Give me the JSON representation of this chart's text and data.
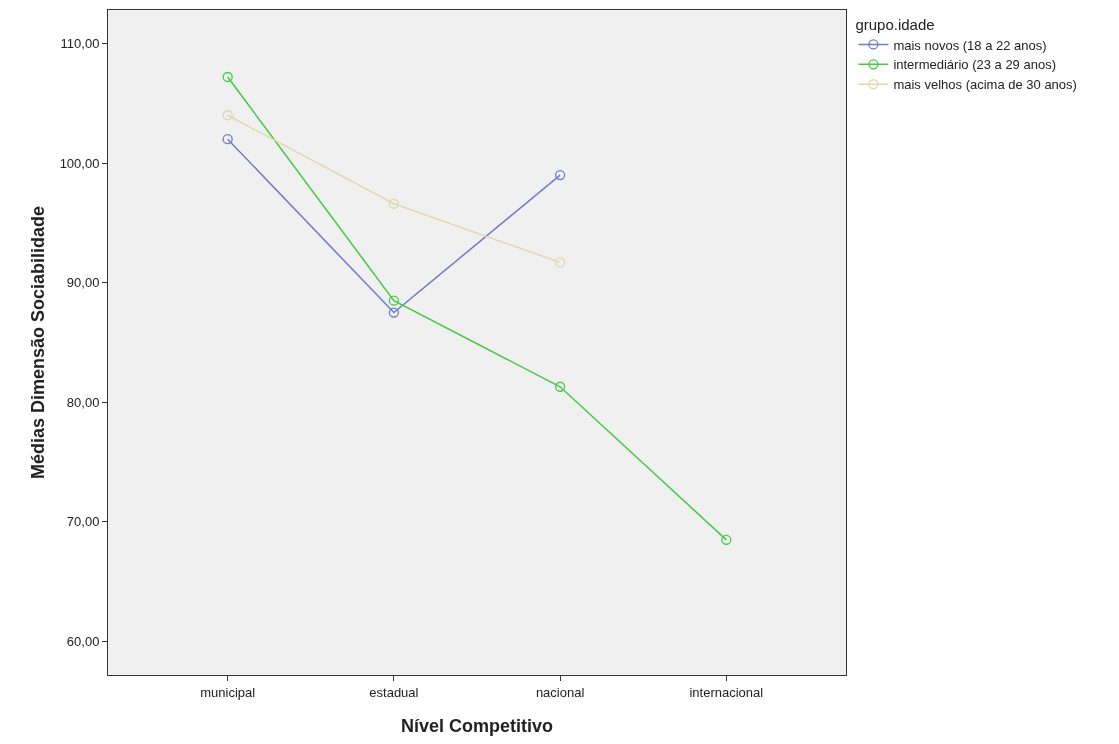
{
  "chart_data": {
    "type": "line",
    "xlabel": "Nível Competitivo",
    "ylabel": "Médias Dimensão Sociabilidade",
    "legend_title": "grupo.idade",
    "categories": [
      "municipal",
      "estadual",
      "nacional",
      "internacional"
    ],
    "series": [
      {
        "name": "mais novos (18 a 22 anos)",
        "color": "#6d7bc9",
        "values": [
          102.0,
          87.5,
          99.0,
          null
        ]
      },
      {
        "name": "intermediário (23 a 29 anos)",
        "color": "#45c845",
        "values": [
          107.2,
          88.5,
          81.3,
          68.5
        ]
      },
      {
        "name": "mais velhos (acima de 30 anos)",
        "color": "#e0d9ac",
        "values": [
          104.0,
          96.6,
          91.7,
          null
        ]
      }
    ],
    "ylim": [
      57.2,
      112.8
    ],
    "yticks": [
      {
        "value": 60,
        "label": "60,00"
      },
      {
        "value": 70,
        "label": "70,00"
      },
      {
        "value": 80,
        "label": "80,00"
      },
      {
        "value": 90,
        "label": "90,00"
      },
      {
        "value": 100,
        "label": "100,00"
      },
      {
        "value": 110,
        "label": "110,00"
      }
    ],
    "grid": false,
    "legend": "top right",
    "marker": "circle",
    "line_style": "solid"
  }
}
